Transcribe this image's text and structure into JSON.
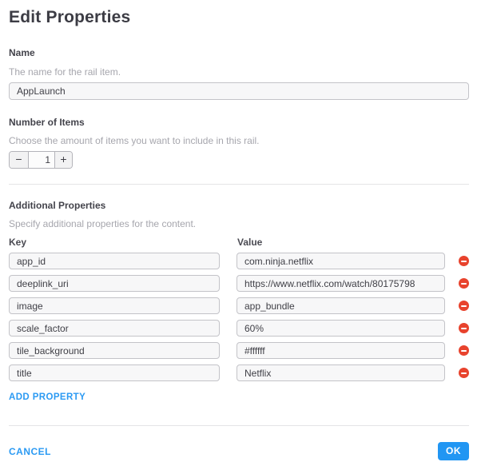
{
  "title": "Edit Properties",
  "name_section": {
    "label": "Name",
    "description": "The name for the rail item.",
    "value": "AppLaunch"
  },
  "items_section": {
    "label": "Number of Items",
    "description": "Choose the amount of items you want to include in this rail.",
    "value": "1",
    "decrement_label": "−",
    "increment_label": "+"
  },
  "properties_section": {
    "label": "Additional Properties",
    "description": "Specify additional properties for the content.",
    "key_header": "Key",
    "value_header": "Value",
    "rows": [
      {
        "key": "app_id",
        "value": "com.ninja.netflix"
      },
      {
        "key": "deeplink_uri",
        "value": "https://www.netflix.com/watch/80175798"
      },
      {
        "key": "image",
        "value": "app_bundle"
      },
      {
        "key": "scale_factor",
        "value": "60%"
      },
      {
        "key": "tile_background",
        "value": "#ffffff"
      },
      {
        "key": "title",
        "value": "Netflix"
      }
    ],
    "add_button_label": "ADD PROPERTY"
  },
  "footer": {
    "cancel_label": "CANCEL",
    "ok_label": "OK"
  },
  "colors": {
    "accent_blue": "#2196f3",
    "danger_red": "#e8432d"
  }
}
